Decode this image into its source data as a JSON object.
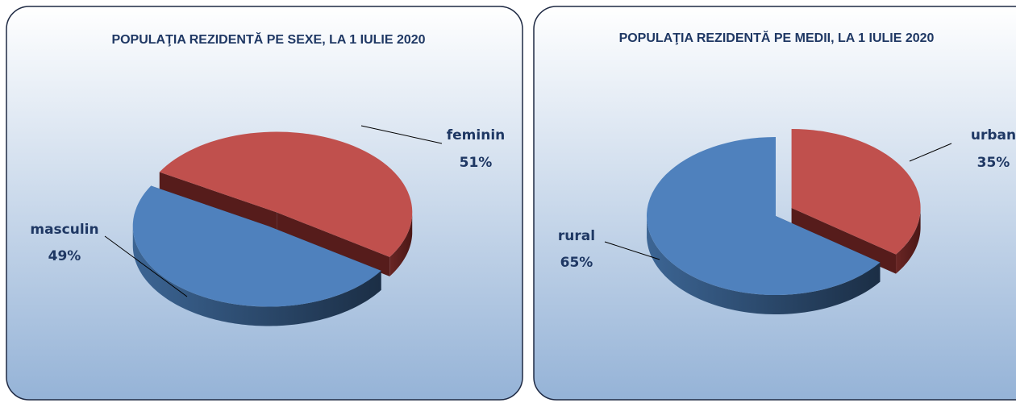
{
  "chart_data": [
    {
      "type": "pie",
      "title": "POPULAŢIA REZIDENTĂ PE SEXE, LA 1 IULIE 2020",
      "categories": [
        "feminin",
        "masculin"
      ],
      "values": [
        51,
        49
      ],
      "value_labels": [
        "51%",
        "49%"
      ],
      "colors": [
        "#c0504d",
        "#4f81bd"
      ]
    },
    {
      "type": "pie",
      "title": "POPULAŢIA REZIDENTĂ PE MEDII, LA 1 IULIE 2020",
      "categories": [
        "urban",
        "rural"
      ],
      "values": [
        35,
        65
      ],
      "value_labels": [
        "35%",
        "65%"
      ],
      "colors": [
        "#c0504d",
        "#4f81bd"
      ]
    }
  ]
}
